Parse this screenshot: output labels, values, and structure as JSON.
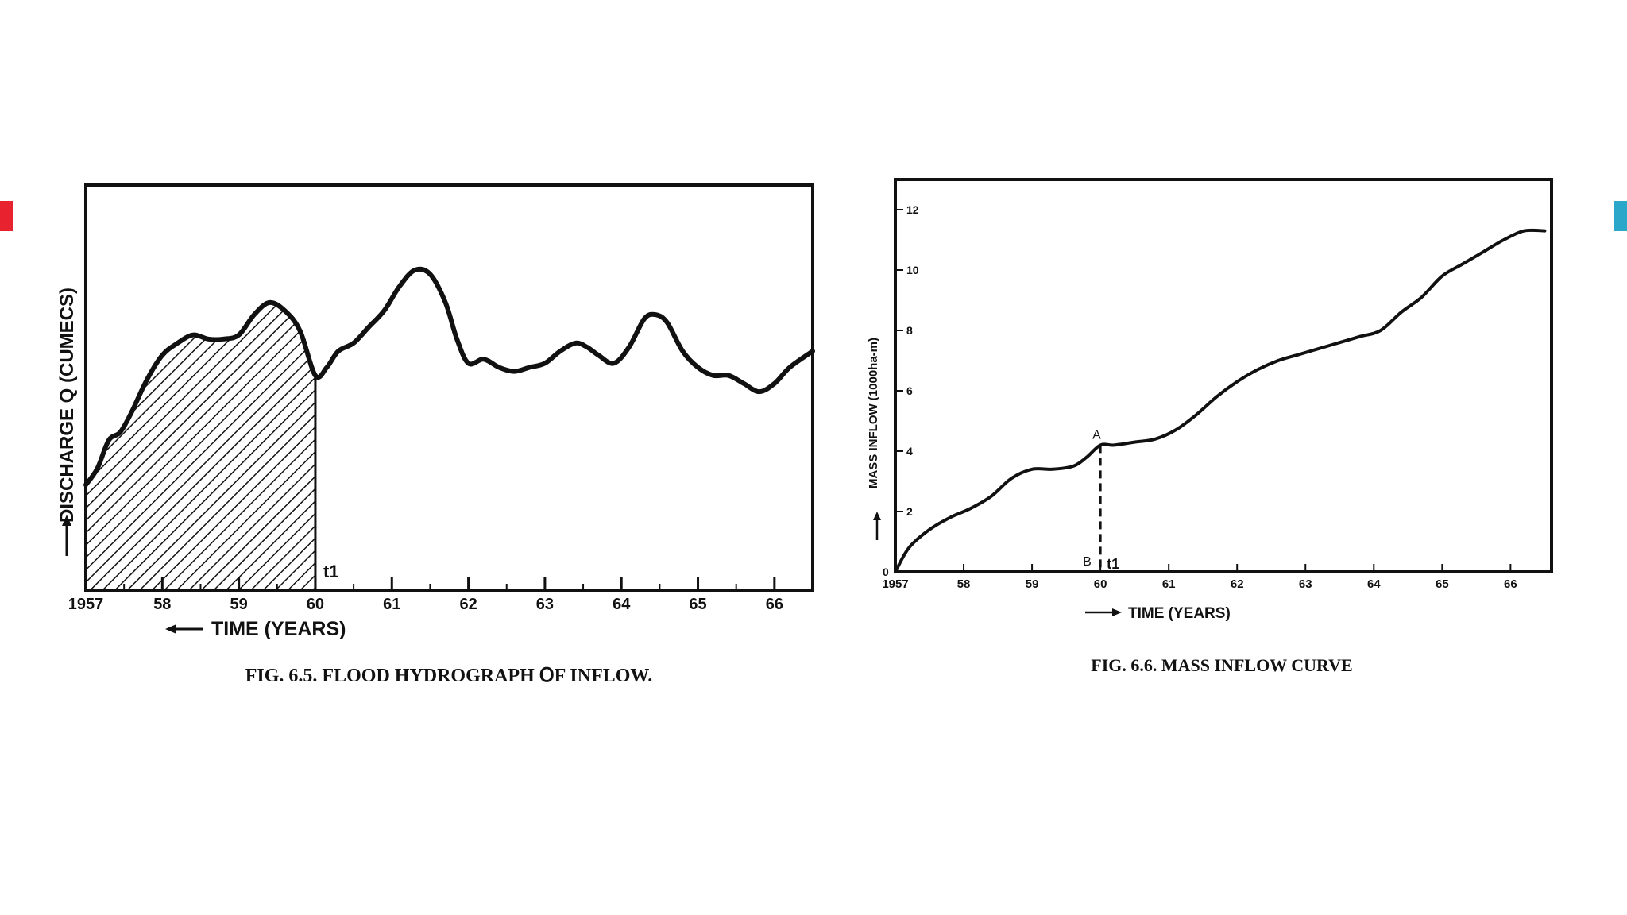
{
  "colors": {
    "accent_left": "#e8222e",
    "accent_right": "#2aa7c9",
    "ink": "#111111"
  },
  "chart_data": [
    {
      "type": "area",
      "caption": "FIG. 6.5. FLOOD HYDROGRAPH ՕF INFLOW.",
      "xlabel": "TIME (YEARS)",
      "ylabel": "DISCHARGE Q (CUMECS)",
      "x_tick_labels": [
        "1957",
        "58",
        "59",
        "60",
        "61",
        "62",
        "63",
        "64",
        "65",
        "66"
      ],
      "xlim": [
        1957,
        1966.5
      ],
      "ylim": [
        0,
        10
      ],
      "shaded_region": {
        "from": 1957,
        "to": 1960,
        "pattern": "diagonal-hatch"
      },
      "annotation": "t1",
      "annotation_x": 1960,
      "series": [
        {
          "x": [
            1957.0,
            1957.15,
            1957.3,
            1957.45,
            1957.6,
            1957.8,
            1958.0,
            1958.2,
            1958.4,
            1958.6,
            1958.8,
            1959.0,
            1959.2,
            1959.4,
            1959.6,
            1959.8,
            1960.0,
            1960.15,
            1960.3,
            1960.5,
            1960.7,
            1960.9,
            1961.1,
            1961.3,
            1961.5,
            1961.7,
            1961.85,
            1962.0,
            1962.2,
            1962.4,
            1962.6,
            1962.8,
            1963.0,
            1963.2,
            1963.4,
            1963.55,
            1963.7,
            1963.9,
            1964.1,
            1964.3,
            1964.45,
            1964.6,
            1964.8,
            1965.0,
            1965.2,
            1965.4,
            1965.6,
            1965.8,
            1966.0,
            1966.2,
            1966.5
          ],
          "values": [
            2.6,
            3.0,
            3.7,
            3.9,
            4.4,
            5.2,
            5.8,
            6.1,
            6.3,
            6.2,
            6.2,
            6.3,
            6.8,
            7.1,
            6.9,
            6.4,
            5.3,
            5.5,
            5.9,
            6.1,
            6.5,
            6.9,
            7.5,
            7.9,
            7.8,
            7.1,
            6.2,
            5.6,
            5.7,
            5.5,
            5.4,
            5.5,
            5.6,
            5.9,
            6.1,
            6.0,
            5.8,
            5.6,
            6.0,
            6.7,
            6.8,
            6.6,
            5.9,
            5.5,
            5.3,
            5.3,
            5.1,
            4.9,
            5.1,
            5.5,
            5.9
          ]
        }
      ]
    },
    {
      "type": "line",
      "caption": "FIG. 6.6. MASS INFLOW CURVE",
      "xlabel": "TIME (YEARS)",
      "ylabel": "MASS INFLOW (1000ha-m)",
      "x_tick_labels": [
        "1957",
        "58",
        "59",
        "60",
        "61",
        "62",
        "63",
        "64",
        "65",
        "66"
      ],
      "y_tick_labels": [
        "0",
        "2",
        "4",
        "6",
        "8",
        "10",
        "12"
      ],
      "y_ticks": [
        0,
        2,
        4,
        6,
        8,
        10,
        12
      ],
      "xlim": [
        1957,
        1966.6
      ],
      "ylim": [
        0,
        13
      ],
      "points": [
        {
          "label": "A",
          "x": 1960.0,
          "y": 4.2
        },
        {
          "label": "B",
          "x": 1960.0,
          "y": 0
        }
      ],
      "annotation": "t1",
      "series": [
        {
          "x": [
            1957.0,
            1957.2,
            1957.5,
            1957.8,
            1958.1,
            1958.4,
            1958.7,
            1959.0,
            1959.3,
            1959.6,
            1959.8,
            1960.0,
            1960.2,
            1960.5,
            1960.8,
            1961.1,
            1961.4,
            1961.7,
            1962.0,
            1962.3,
            1962.6,
            1962.9,
            1963.2,
            1963.5,
            1963.8,
            1964.1,
            1964.4,
            1964.7,
            1965.0,
            1965.3,
            1965.6,
            1965.9,
            1966.2,
            1966.5
          ],
          "values": [
            0.0,
            0.8,
            1.4,
            1.8,
            2.1,
            2.5,
            3.1,
            3.4,
            3.4,
            3.5,
            3.8,
            4.2,
            4.2,
            4.3,
            4.4,
            4.7,
            5.2,
            5.8,
            6.3,
            6.7,
            7.0,
            7.2,
            7.4,
            7.6,
            7.8,
            8.0,
            8.6,
            9.1,
            9.8,
            10.2,
            10.6,
            11.0,
            11.3,
            11.3
          ]
        }
      ]
    }
  ]
}
